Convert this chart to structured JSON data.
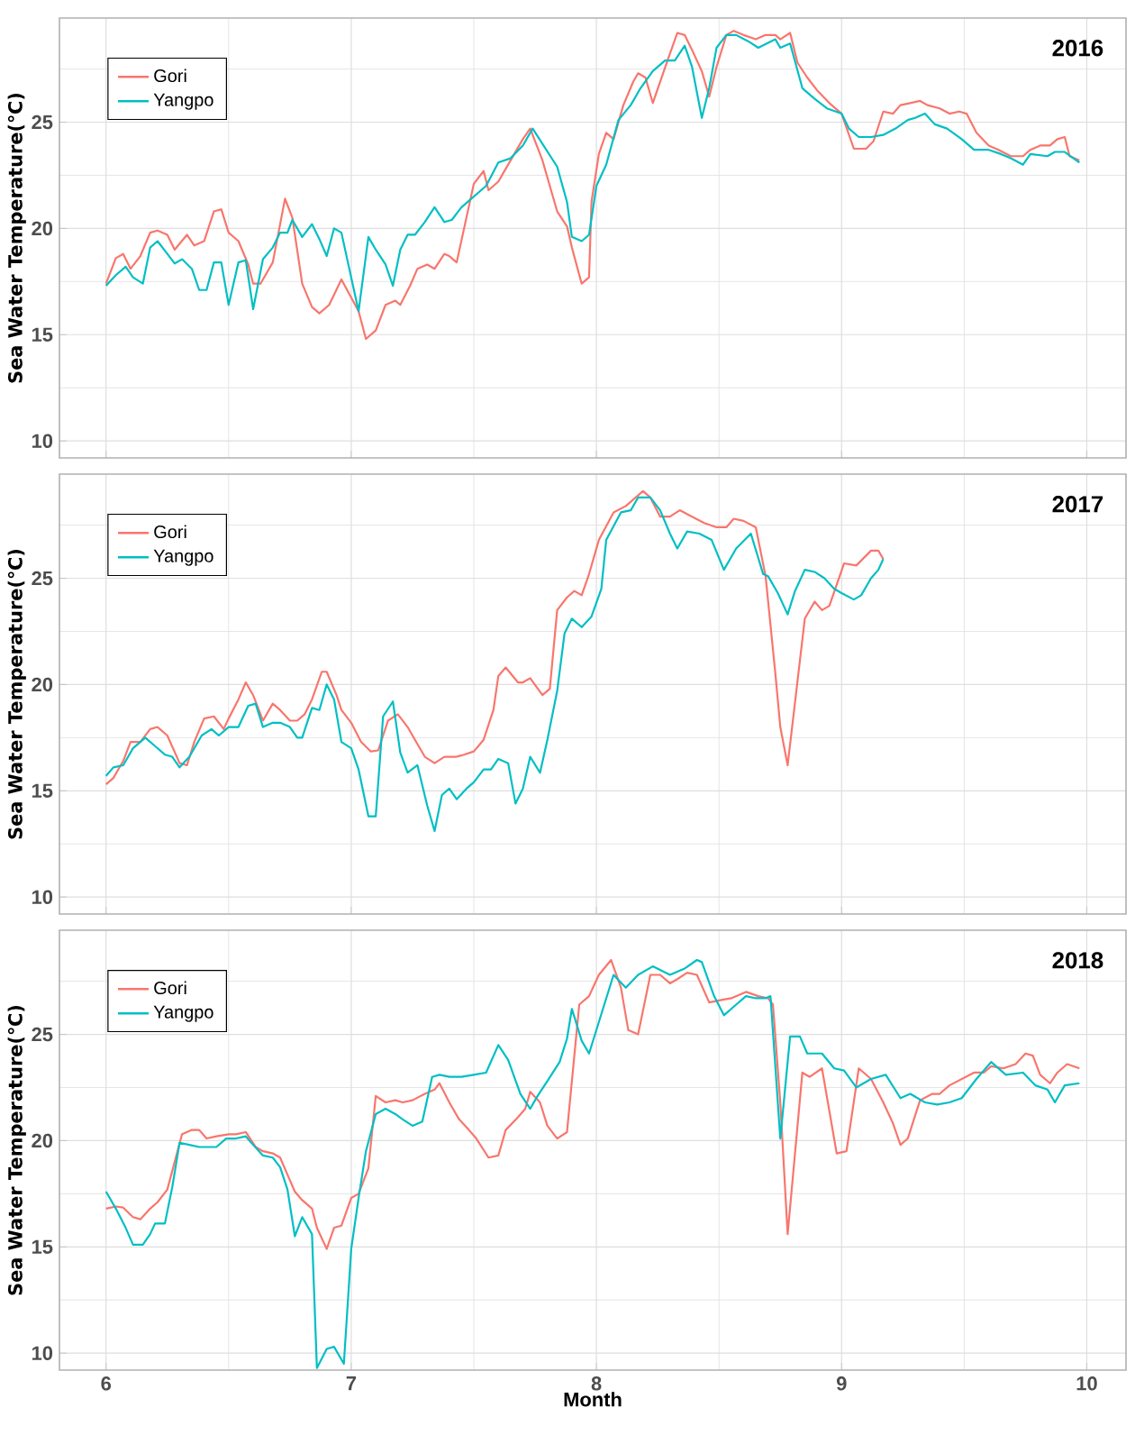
{
  "chart_data": [
    {
      "type": "line",
      "title": "2016",
      "ylabel": "Sea Water Temperature(℃)",
      "xlim": [
        5.81,
        10.16
      ],
      "ylim": [
        9.2,
        29.9
      ],
      "xticks": [
        6,
        7,
        8,
        9,
        10
      ],
      "yticks": [
        10,
        15,
        20,
        25
      ],
      "tick_labels": "y",
      "grid": true,
      "legend": "top left",
      "series": [
        {
          "name": "Gori",
          "color": "#F8766D",
          "x": [
            6.0,
            6.04,
            6.07,
            6.1,
            6.14,
            6.18,
            6.21,
            6.25,
            6.28,
            6.33,
            6.36,
            6.4,
            6.44,
            6.47,
            6.5,
            6.54,
            6.58,
            6.6,
            6.63,
            6.68,
            6.73,
            6.76,
            6.8,
            6.84,
            6.87,
            6.91,
            6.96,
            7.03,
            7.06,
            7.1,
            7.14,
            7.18,
            7.2,
            7.24,
            7.27,
            7.31,
            7.34,
            7.38,
            7.4,
            7.43,
            7.5,
            7.54,
            7.56,
            7.6,
            7.64,
            7.7,
            7.73,
            7.78,
            7.84,
            7.88,
            7.9,
            7.94,
            7.97,
            7.98,
            8.01,
            8.04,
            8.07,
            8.11,
            8.15,
            8.17,
            8.2,
            8.23,
            8.26,
            8.29,
            8.33,
            8.36,
            8.39,
            8.43,
            8.46,
            8.49,
            8.53,
            8.56,
            8.6,
            8.65,
            8.69,
            8.73,
            8.75,
            8.79,
            8.82,
            8.86,
            8.9,
            8.95,
            9.0,
            9.05,
            9.1,
            9.13,
            9.17,
            9.21,
            9.24,
            9.28,
            9.32,
            9.35,
            9.4,
            9.44,
            9.48,
            9.51,
            9.55,
            9.6,
            9.64,
            9.69,
            9.74,
            9.77,
            9.81,
            9.85,
            9.88,
            9.91,
            9.93,
            9.97
          ],
          "values": [
            17.4,
            18.6,
            18.8,
            18.1,
            18.7,
            19.8,
            19.9,
            19.7,
            19.0,
            19.7,
            19.2,
            19.4,
            20.8,
            20.9,
            19.8,
            19.4,
            18.3,
            17.4,
            17.4,
            18.4,
            21.4,
            20.5,
            17.4,
            16.3,
            16.0,
            16.4,
            17.6,
            16.1,
            14.8,
            15.2,
            16.4,
            16.6,
            16.4,
            17.3,
            18.1,
            18.3,
            18.1,
            18.8,
            18.7,
            18.4,
            22.1,
            22.7,
            21.8,
            22.2,
            23.0,
            24.2,
            24.7,
            23.2,
            20.8,
            20.1,
            19.1,
            17.4,
            17.7,
            21.25,
            23.5,
            24.5,
            24.2,
            25.8,
            26.9,
            27.3,
            27.1,
            25.9,
            26.9,
            27.9,
            29.2,
            29.1,
            28.4,
            27.4,
            26.2,
            27.6,
            29.1,
            29.3,
            29.1,
            28.9,
            29.1,
            29.1,
            28.9,
            29.2,
            27.8,
            27.1,
            26.5,
            25.9,
            25.4,
            23.75,
            23.75,
            24.1,
            25.5,
            25.4,
            25.8,
            25.9,
            26.0,
            25.8,
            25.65,
            25.4,
            25.5,
            25.4,
            24.5,
            23.9,
            23.7,
            23.4,
            23.4,
            23.7,
            23.9,
            23.9,
            24.2,
            24.3,
            23.4,
            23.2
          ]
        },
        {
          "name": "Yangpo",
          "color": "#00BFC4",
          "x": [
            6.0,
            6.04,
            6.08,
            6.11,
            6.15,
            6.18,
            6.21,
            6.25,
            6.28,
            6.31,
            6.35,
            6.38,
            6.41,
            6.44,
            6.47,
            6.5,
            6.54,
            6.57,
            6.6,
            6.64,
            6.68,
            6.71,
            6.74,
            6.76,
            6.8,
            6.84,
            6.87,
            6.9,
            6.93,
            6.96,
            7.03,
            7.07,
            7.1,
            7.14,
            7.17,
            7.2,
            7.23,
            7.26,
            7.3,
            7.34,
            7.38,
            7.41,
            7.45,
            7.5,
            7.55,
            7.6,
            7.65,
            7.7,
            7.74,
            7.79,
            7.84,
            7.88,
            7.9,
            7.94,
            7.97,
            8.0,
            8.04,
            8.09,
            8.14,
            8.18,
            8.23,
            8.28,
            8.32,
            8.36,
            8.39,
            8.43,
            8.46,
            8.49,
            8.53,
            8.57,
            8.62,
            8.66,
            8.73,
            8.75,
            8.79,
            8.84,
            8.89,
            8.94,
            9.0,
            9.03,
            9.07,
            9.12,
            9.17,
            9.22,
            9.27,
            9.3,
            9.34,
            9.38,
            9.43,
            9.49,
            9.54,
            9.6,
            9.65,
            9.69,
            9.74,
            9.77,
            9.84,
            9.87,
            9.91,
            9.97
          ],
          "values": [
            17.3,
            17.8,
            18.2,
            17.7,
            17.4,
            19.1,
            19.4,
            18.8,
            18.35,
            18.55,
            18.1,
            17.1,
            17.1,
            18.4,
            18.4,
            16.4,
            18.4,
            18.5,
            16.2,
            18.55,
            19.1,
            19.8,
            19.8,
            20.4,
            19.6,
            20.2,
            19.5,
            18.7,
            20.0,
            19.8,
            16.1,
            19.6,
            19.0,
            18.3,
            17.3,
            19.0,
            19.7,
            19.7,
            20.3,
            21.0,
            20.3,
            20.4,
            21.0,
            21.5,
            22.0,
            23.1,
            23.3,
            23.9,
            24.7,
            23.8,
            22.9,
            21.25,
            19.6,
            19.4,
            19.7,
            22.0,
            23.0,
            25.1,
            25.8,
            26.6,
            27.4,
            27.9,
            27.9,
            28.6,
            27.6,
            25.2,
            26.6,
            28.5,
            29.1,
            29.1,
            28.8,
            28.5,
            28.9,
            28.5,
            28.7,
            26.6,
            26.1,
            25.65,
            25.4,
            24.7,
            24.3,
            24.3,
            24.4,
            24.7,
            25.1,
            25.2,
            25.4,
            24.9,
            24.7,
            24.2,
            23.7,
            23.7,
            23.5,
            23.3,
            23.0,
            23.5,
            23.4,
            23.6,
            23.6,
            23.1
          ]
        }
      ]
    },
    {
      "type": "line",
      "title": "2017",
      "ylabel": "Sea Water Temperature(℃)",
      "xlim": [
        5.81,
        10.16
      ],
      "ylim": [
        9.2,
        29.9
      ],
      "xticks": [
        6,
        7,
        8,
        9,
        10
      ],
      "yticks": [
        10,
        15,
        20,
        25
      ],
      "tick_labels": "y",
      "grid": true,
      "legend": "top left",
      "series": [
        {
          "name": "Gori",
          "color": "#F8766D",
          "x": [
            6.0,
            6.03,
            6.07,
            6.1,
            6.14,
            6.18,
            6.21,
            6.25,
            6.3,
            6.33,
            6.36,
            6.4,
            6.44,
            6.48,
            6.5,
            6.54,
            6.57,
            6.6,
            6.64,
            6.68,
            6.71,
            6.75,
            6.78,
            6.81,
            6.84,
            6.88,
            6.9,
            6.94,
            6.96,
            7.0,
            7.04,
            7.08,
            7.11,
            7.15,
            7.19,
            7.23,
            7.26,
            7.3,
            7.34,
            7.38,
            7.43,
            7.46,
            7.5,
            7.54,
            7.58,
            7.6,
            7.63,
            7.68,
            7.7,
            7.73,
            7.78,
            7.81,
            7.84,
            7.88,
            7.91,
            7.94,
            7.97,
            8.01,
            8.07,
            8.12,
            8.19,
            8.22,
            8.26,
            8.3,
            8.34,
            8.39,
            8.44,
            8.49,
            8.53,
            8.56,
            8.6,
            8.65,
            8.69,
            8.73,
            8.75,
            8.78,
            8.85,
            8.89,
            8.92,
            8.95,
            9.01,
            9.06,
            9.12,
            9.15,
            9.17
          ],
          "values": [
            15.3,
            15.6,
            16.4,
            17.3,
            17.3,
            17.9,
            18.0,
            17.6,
            16.3,
            16.2,
            17.3,
            18.4,
            18.5,
            17.9,
            18.4,
            19.3,
            20.1,
            19.5,
            18.3,
            19.1,
            18.8,
            18.3,
            18.3,
            18.6,
            19.3,
            20.6,
            20.6,
            19.5,
            18.8,
            18.2,
            17.3,
            16.85,
            16.9,
            18.3,
            18.6,
            18.0,
            17.4,
            16.6,
            16.3,
            16.6,
            16.6,
            16.7,
            16.85,
            17.4,
            18.8,
            20.4,
            20.8,
            20.1,
            20.1,
            20.3,
            19.5,
            19.8,
            23.5,
            24.1,
            24.4,
            24.2,
            25.2,
            26.8,
            28.1,
            28.4,
            29.1,
            28.8,
            27.9,
            27.9,
            28.2,
            27.9,
            27.6,
            27.4,
            27.4,
            27.8,
            27.7,
            27.4,
            25.1,
            20.5,
            18.0,
            16.2,
            23.1,
            23.9,
            23.5,
            23.7,
            25.7,
            25.6,
            26.3,
            26.3,
            25.9
          ]
        },
        {
          "name": "Yangpo",
          "color": "#00BFC4",
          "x": [
            6.0,
            6.03,
            6.07,
            6.11,
            6.16,
            6.2,
            6.24,
            6.27,
            6.3,
            6.34,
            6.39,
            6.43,
            6.46,
            6.5,
            6.54,
            6.58,
            6.61,
            6.64,
            6.68,
            6.71,
            6.75,
            6.78,
            6.8,
            6.84,
            6.87,
            6.9,
            6.93,
            6.96,
            7.0,
            7.03,
            7.07,
            7.1,
            7.13,
            7.17,
            7.2,
            7.23,
            7.27,
            7.31,
            7.34,
            7.37,
            7.4,
            7.43,
            7.47,
            7.5,
            7.54,
            7.57,
            7.6,
            7.64,
            7.67,
            7.7,
            7.73,
            7.77,
            7.8,
            7.84,
            7.87,
            7.9,
            7.94,
            7.98,
            8.02,
            8.04,
            8.1,
            8.14,
            8.17,
            8.22,
            8.26,
            8.3,
            8.33,
            8.37,
            8.42,
            8.47,
            8.52,
            8.57,
            8.63,
            8.68,
            8.7,
            8.74,
            8.78,
            8.81,
            8.85,
            8.89,
            8.93,
            8.97,
            9.0,
            9.05,
            9.08,
            9.12,
            9.15,
            9.17
          ],
          "values": [
            15.7,
            16.1,
            16.2,
            17.0,
            17.5,
            17.1,
            16.7,
            16.6,
            16.1,
            16.6,
            17.6,
            17.9,
            17.6,
            18.0,
            18.0,
            19.0,
            19.1,
            18.0,
            18.2,
            18.2,
            18.0,
            17.5,
            17.5,
            18.9,
            18.8,
            20.0,
            19.3,
            17.3,
            17.0,
            16.0,
            13.8,
            13.8,
            18.5,
            19.2,
            16.8,
            15.85,
            16.2,
            14.3,
            13.1,
            14.8,
            15.1,
            14.6,
            15.1,
            15.4,
            16.0,
            16.0,
            16.5,
            16.3,
            14.4,
            15.1,
            16.6,
            15.85,
            17.4,
            19.7,
            22.4,
            23.1,
            22.7,
            23.2,
            24.5,
            26.8,
            28.1,
            28.2,
            28.8,
            28.8,
            28.2,
            27.1,
            26.4,
            27.2,
            27.1,
            26.8,
            25.4,
            26.4,
            27.1,
            25.2,
            25.1,
            24.3,
            23.3,
            24.4,
            25.4,
            25.3,
            25.0,
            24.5,
            24.3,
            24.0,
            24.2,
            25.0,
            25.4,
            25.9
          ]
        }
      ]
    },
    {
      "type": "line",
      "title": "2018",
      "xlabel": "Month",
      "ylabel": "Sea Water Temperature(℃)",
      "xlim": [
        5.81,
        10.16
      ],
      "ylim": [
        9.2,
        29.9
      ],
      "xticks": [
        6,
        7,
        8,
        9,
        10
      ],
      "yticks": [
        10,
        15,
        20,
        25
      ],
      "grid": true,
      "legend": "top left",
      "series": [
        {
          "name": "Gori",
          "color": "#F8766D",
          "x": [
            6.0,
            6.04,
            6.07,
            6.11,
            6.14,
            6.18,
            6.21,
            6.25,
            6.28,
            6.31,
            6.35,
            6.38,
            6.41,
            6.45,
            6.5,
            6.53,
            6.57,
            6.61,
            6.64,
            6.68,
            6.71,
            6.74,
            6.77,
            6.8,
            6.84,
            6.86,
            6.9,
            6.93,
            6.96,
            7.0,
            7.03,
            7.07,
            7.1,
            7.14,
            7.18,
            7.21,
            7.25,
            7.3,
            7.34,
            7.36,
            7.4,
            7.44,
            7.48,
            7.51,
            7.56,
            7.6,
            7.63,
            7.68,
            7.71,
            7.73,
            7.77,
            7.8,
            7.84,
            7.88,
            7.93,
            7.97,
            8.01,
            8.06,
            8.1,
            8.13,
            8.17,
            8.22,
            8.26,
            8.3,
            8.33,
            8.37,
            8.41,
            8.46,
            8.5,
            8.55,
            8.61,
            8.66,
            8.7,
            8.72,
            8.75,
            8.78,
            8.84,
            8.87,
            8.92,
            8.98,
            9.02,
            9.07,
            9.12,
            9.17,
            9.21,
            9.24,
            9.27,
            9.32,
            9.37,
            9.4,
            9.44,
            9.49,
            9.54,
            9.58,
            9.61,
            9.66,
            9.71,
            9.75,
            9.78,
            9.81,
            9.85,
            9.88,
            9.92,
            9.97
          ],
          "values": [
            16.8,
            16.9,
            16.85,
            16.4,
            16.3,
            16.8,
            17.1,
            17.7,
            19.0,
            20.3,
            20.5,
            20.5,
            20.1,
            20.2,
            20.3,
            20.3,
            20.4,
            19.7,
            19.5,
            19.4,
            19.2,
            18.4,
            17.6,
            17.2,
            16.8,
            15.9,
            14.9,
            15.9,
            16.0,
            17.3,
            17.5,
            18.7,
            22.1,
            21.8,
            21.9,
            21.8,
            21.9,
            22.2,
            22.4,
            22.7,
            21.8,
            21.0,
            20.5,
            20.1,
            19.2,
            19.3,
            20.5,
            21.1,
            21.5,
            22.3,
            21.8,
            20.7,
            20.1,
            20.4,
            26.4,
            26.8,
            27.8,
            28.5,
            27.2,
            25.2,
            25.0,
            27.8,
            27.8,
            27.4,
            27.6,
            27.9,
            27.8,
            26.5,
            26.6,
            26.7,
            27.0,
            26.8,
            26.7,
            26.4,
            21.8,
            15.6,
            23.2,
            23.0,
            23.4,
            19.4,
            19.5,
            23.4,
            22.9,
            21.8,
            20.8,
            19.8,
            20.1,
            21.9,
            22.2,
            22.2,
            22.6,
            22.9,
            23.2,
            23.2,
            23.5,
            23.4,
            23.6,
            24.1,
            24.0,
            23.1,
            22.7,
            23.2,
            23.6,
            23.4
          ]
        },
        {
          "name": "Yangpo",
          "color": "#00BFC4",
          "x": [
            6.0,
            6.04,
            6.08,
            6.11,
            6.15,
            6.18,
            6.2,
            6.24,
            6.27,
            6.3,
            6.34,
            6.38,
            6.41,
            6.45,
            6.49,
            6.53,
            6.57,
            6.6,
            6.64,
            6.68,
            6.71,
            6.74,
            6.77,
            6.8,
            6.84,
            6.86,
            6.9,
            6.93,
            6.97,
            7.0,
            7.03,
            7.06,
            7.1,
            7.14,
            7.18,
            7.21,
            7.25,
            7.29,
            7.33,
            7.36,
            7.4,
            7.45,
            7.5,
            7.55,
            7.6,
            7.64,
            7.69,
            7.73,
            7.76,
            7.8,
            7.85,
            7.88,
            7.9,
            7.94,
            7.97,
            8.07,
            8.12,
            8.17,
            8.23,
            8.3,
            8.36,
            8.41,
            8.43,
            8.48,
            8.52,
            8.57,
            8.61,
            8.65,
            8.69,
            8.71,
            8.75,
            8.79,
            8.83,
            8.86,
            8.92,
            8.97,
            9.01,
            9.06,
            9.12,
            9.18,
            9.24,
            9.28,
            9.34,
            9.39,
            9.44,
            9.49,
            9.55,
            9.61,
            9.67,
            9.74,
            9.79,
            9.84,
            9.87,
            9.91,
            9.97
          ],
          "values": [
            17.6,
            16.8,
            15.9,
            15.1,
            15.1,
            15.6,
            16.1,
            16.1,
            17.8,
            19.9,
            19.8,
            19.7,
            19.7,
            19.7,
            20.1,
            20.1,
            20.2,
            19.8,
            19.3,
            19.2,
            18.75,
            17.7,
            15.5,
            16.4,
            15.6,
            9.3,
            10.2,
            10.3,
            9.5,
            14.9,
            17.3,
            19.5,
            21.25,
            21.5,
            21.25,
            21.0,
            20.7,
            20.9,
            23.0,
            23.1,
            23.0,
            23.0,
            23.1,
            23.2,
            24.5,
            23.8,
            22.2,
            21.5,
            22.1,
            22.8,
            23.7,
            24.8,
            26.2,
            24.7,
            24.1,
            27.8,
            27.2,
            27.8,
            28.2,
            27.8,
            28.1,
            28.5,
            28.4,
            26.8,
            25.9,
            26.4,
            26.8,
            26.7,
            26.7,
            26.8,
            20.1,
            24.9,
            24.9,
            24.1,
            24.1,
            23.4,
            23.3,
            22.5,
            22.9,
            23.1,
            22.0,
            22.2,
            21.8,
            21.7,
            21.8,
            22.0,
            22.9,
            23.7,
            23.1,
            23.2,
            22.6,
            22.4,
            21.8,
            22.6,
            22.7
          ]
        }
      ]
    }
  ]
}
